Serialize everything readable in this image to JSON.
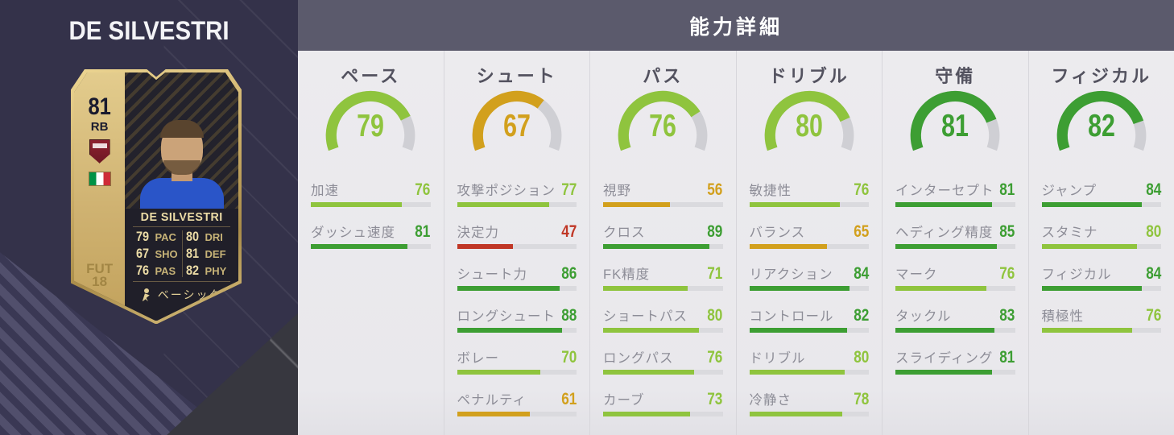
{
  "left_panel": {
    "player_title": "DE SILVESTRI",
    "card": {
      "rating": "81",
      "position": "RB",
      "club_name": "TORINO",
      "nation": "italy",
      "name": "DE SILVESTRI",
      "quick_stats": [
        {
          "value": "79",
          "label": "PAC"
        },
        {
          "value": "80",
          "label": "DRI"
        },
        {
          "value": "67",
          "label": "SHO"
        },
        {
          "value": "81",
          "label": "DEF"
        },
        {
          "value": "76",
          "label": "PAS"
        },
        {
          "value": "82",
          "label": "PHY"
        }
      ],
      "chem_style": "ベーシック",
      "edition_watermark_line1": "FUT",
      "edition_watermark_line2": "18"
    }
  },
  "panel": {
    "title": "能力詳細",
    "value_colors": {
      "high": "#3d9e33",
      "mid": "#8fc43e",
      "low": "#d2a01d",
      "poor": "#c03726",
      "bar_track": "#dadade",
      "gauge_track": "#cfcfd4"
    },
    "categories": [
      {
        "name": "ペース",
        "value": 79,
        "stats": [
          {
            "label": "加速",
            "value": 76
          },
          {
            "label": "ダッシュ速度",
            "value": 81
          }
        ]
      },
      {
        "name": "シュート",
        "value": 67,
        "stats": [
          {
            "label": "攻撃ポジション",
            "value": 77
          },
          {
            "label": "決定力",
            "value": 47
          },
          {
            "label": "シュート力",
            "value": 86
          },
          {
            "label": "ロングシュート",
            "value": 88
          },
          {
            "label": "ボレー",
            "value": 70
          },
          {
            "label": "ペナルティ",
            "value": 61
          }
        ]
      },
      {
        "name": "パス",
        "value": 76,
        "stats": [
          {
            "label": "視野",
            "value": 56
          },
          {
            "label": "クロス",
            "value": 89
          },
          {
            "label": "FK精度",
            "value": 71
          },
          {
            "label": "ショートパス",
            "value": 80
          },
          {
            "label": "ロングパス",
            "value": 76
          },
          {
            "label": "カーブ",
            "value": 73
          }
        ]
      },
      {
        "name": "ドリブル",
        "value": 80,
        "stats": [
          {
            "label": "敏捷性",
            "value": 76
          },
          {
            "label": "バランス",
            "value": 65
          },
          {
            "label": "リアクション",
            "value": 84
          },
          {
            "label": "コントロール",
            "value": 82
          },
          {
            "label": "ドリブル",
            "value": 80
          },
          {
            "label": "冷静さ",
            "value": 78
          }
        ]
      },
      {
        "name": "守備",
        "value": 81,
        "stats": [
          {
            "label": "インターセプト",
            "value": 81
          },
          {
            "label": "ヘディング精度",
            "value": 85
          },
          {
            "label": "マーク",
            "value": 76
          },
          {
            "label": "タックル",
            "value": 83
          },
          {
            "label": "スライディング",
            "value": 81
          }
        ]
      },
      {
        "name": "フィジカル",
        "value": 82,
        "stats": [
          {
            "label": "ジャンプ",
            "value": 84
          },
          {
            "label": "スタミナ",
            "value": 80
          },
          {
            "label": "フィジカル",
            "value": 84
          },
          {
            "label": "積極性",
            "value": 76
          }
        ]
      }
    ]
  }
}
